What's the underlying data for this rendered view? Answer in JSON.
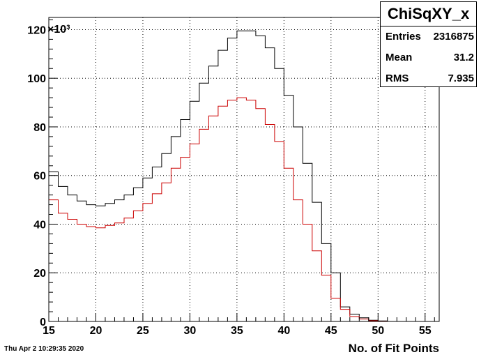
{
  "stats": {
    "title": "ChiSqXY_x",
    "rows": [
      {
        "label": "Entries",
        "value": "2316875"
      },
      {
        "label": "Mean",
        "value": "31.2"
      },
      {
        "label": "RMS",
        "value": "7.935"
      }
    ]
  },
  "date_stamp": "Thu Apr  2 10:29:35 2020",
  "chart_data": {
    "type": "histogram",
    "title": "ChiSqXY_x",
    "xlabel": "No. of Fit Points",
    "ylabel": "",
    "y_multiplier_label": "×10³",
    "xlim": [
      15,
      56.5
    ],
    "ylim": [
      0,
      125
    ],
    "xticks": [
      15,
      20,
      25,
      30,
      35,
      40,
      45,
      50,
      55
    ],
    "yticks": [
      0,
      20,
      40,
      60,
      80,
      100,
      120
    ],
    "grid": true,
    "bin_edges": [
      15,
      16,
      17,
      18,
      19,
      20,
      21,
      22,
      23,
      24,
      25,
      26,
      27,
      28,
      29,
      30,
      31,
      32,
      33,
      34,
      35,
      36,
      37,
      38,
      39,
      40,
      41,
      42,
      43,
      44,
      45,
      46,
      47,
      48,
      49,
      50,
      51,
      52,
      53,
      54,
      55,
      56,
      56.5
    ],
    "series": [
      {
        "color": "#000000",
        "values": [
          61.5,
          55.5,
          52,
          49.5,
          48,
          47.5,
          48.5,
          50,
          52,
          55,
          59,
          63.5,
          69,
          76,
          83,
          90.5,
          98,
          105,
          111.5,
          116.5,
          119.5,
          119.5,
          117.5,
          112.5,
          104,
          93,
          80,
          65,
          49,
          32,
          20,
          6,
          3,
          1.5,
          0.5,
          0.2,
          0,
          0,
          0,
          0,
          0,
          0
        ]
      },
      {
        "color": "#cc0000",
        "values": [
          50,
          44.5,
          42,
          40,
          39,
          38.5,
          39.5,
          40.5,
          42.5,
          45.5,
          48.5,
          52.5,
          57,
          63,
          67.5,
          73,
          79,
          84.5,
          88.5,
          91,
          92,
          91,
          87.5,
          81,
          74,
          63,
          50,
          40,
          29,
          19,
          9.5,
          5,
          2,
          1,
          0.3,
          0.1,
          0,
          0,
          0,
          0,
          0,
          0
        ]
      }
    ]
  }
}
